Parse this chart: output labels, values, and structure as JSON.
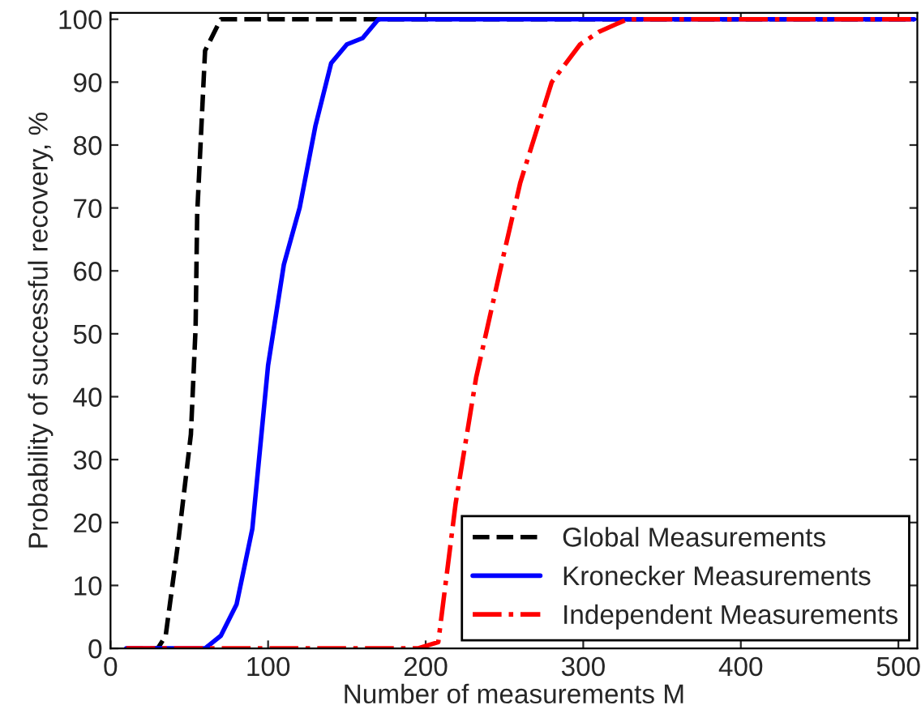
{
  "chart_data": {
    "type": "line",
    "xlabel": "Number of measurements M",
    "ylabel": "Probability of successful recovery, %",
    "xlim": [
      0,
      512
    ],
    "ylim": [
      0,
      101
    ],
    "xticks": [
      0,
      100,
      200,
      300,
      400,
      500
    ],
    "yticks": [
      0,
      10,
      20,
      30,
      40,
      50,
      60,
      70,
      80,
      90,
      100
    ],
    "grid": false,
    "legend": "bottom right",
    "marker": "none",
    "series": [
      {
        "name": "Global Measurements",
        "color": "#000000",
        "line_style": "dashed",
        "x": [
          10,
          20,
          30,
          35,
          43,
          51,
          54,
          55,
          60,
          70,
          100,
          200,
          300,
          400,
          510
        ],
        "values": [
          0,
          0,
          0,
          2,
          17,
          34,
          51,
          69,
          95,
          100,
          100,
          100,
          100,
          100,
          100
        ]
      },
      {
        "name": "Kronecker Measurements",
        "color": "#0000ff",
        "line_style": "solid",
        "x": [
          10,
          20,
          30,
          40,
          50,
          60,
          70,
          80,
          90,
          100,
          110,
          120,
          130,
          140,
          150,
          160,
          170,
          200,
          300,
          400,
          510
        ],
        "values": [
          0,
          0,
          0,
          0,
          0,
          0,
          2,
          7,
          19,
          45,
          61,
          70,
          83,
          93,
          96,
          97,
          100,
          100,
          100,
          100,
          100
        ]
      },
      {
        "name": "Independent Measurements",
        "color": "#ff0000",
        "line_style": "dashdot",
        "x": [
          10,
          50,
          100,
          150,
          195,
          208,
          219,
          232,
          249,
          260,
          280,
          298,
          310,
          328,
          400,
          510
        ],
        "values": [
          0,
          0,
          0,
          0,
          0,
          1,
          23,
          43,
          62,
          74,
          90,
          96,
          98,
          100,
          100,
          100
        ]
      }
    ]
  }
}
